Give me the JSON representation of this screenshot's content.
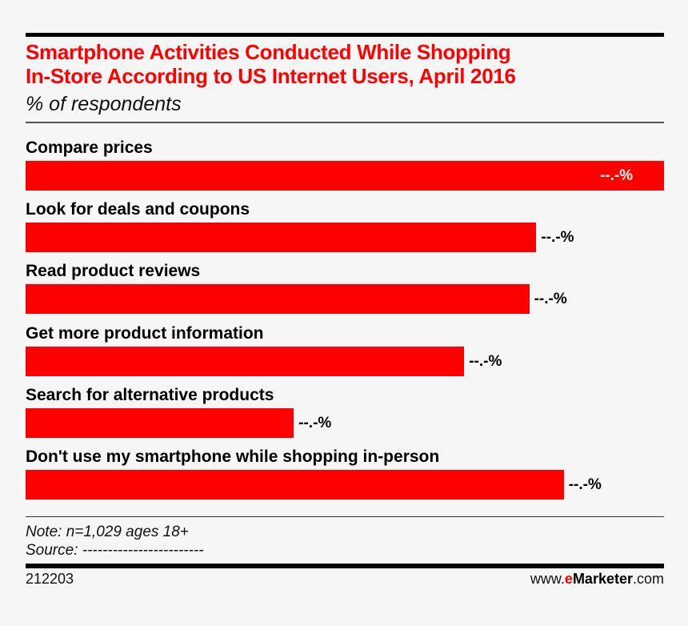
{
  "chart_data": {
    "type": "bar",
    "orientation": "horizontal",
    "title": "Smartphone Activities Conducted While Shopping In-Store According to US Internet Users, April 2016",
    "title_lines": [
      "Smartphone Activities Conducted While Shopping",
      "In-Store According to US Internet Users, April 2016"
    ],
    "subtitle": "% of respondents",
    "categories": [
      "Compare prices",
      "Look for deals and coupons",
      "Read product reviews",
      "Get more product information",
      "Search for alternative products",
      "Don't use my smartphone while shopping in-person"
    ],
    "values": [
      100,
      80.0,
      78.9,
      68.7,
      42.0,
      84.3
    ],
    "value_note": "values are relative bar lengths (largest = 100); printed labels are masked",
    "data_labels": [
      "--.-%",
      "--.-%",
      "--.-%",
      "--.-%",
      "--.-%",
      "--.-%"
    ],
    "xlim": [
      0,
      100
    ],
    "bar_color": "#ff0000",
    "title_color": "#ff0000",
    "grid": false
  },
  "footer": {
    "note": "Note: n=1,029 ages 18+",
    "source": "Source: ------------------------",
    "chart_id": "212203",
    "brand_prefix": "www.",
    "brand_e": "e",
    "brand_name": "Marketer",
    "brand_suffix": ".com"
  }
}
